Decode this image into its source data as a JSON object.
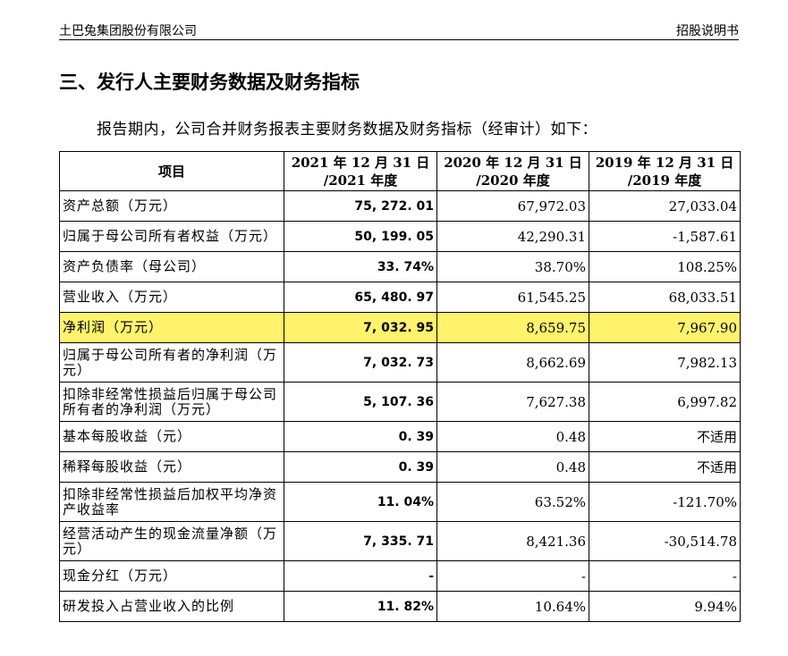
{
  "header": {
    "company": "土巴兔集团股份有限公司",
    "doc_type": "招股说明书"
  },
  "section_title": "三、发行人主要财务数据及财务指标",
  "intro": "报告期内，公司合并财务报表主要财务数据及财务指标（经审计）如下：",
  "table": {
    "headers": [
      {
        "line1": "项目",
        "line2": ""
      },
      {
        "line1": "2021 年 12 月 31 日",
        "line2": "/2021 年度"
      },
      {
        "line1": "2020 年 12 月 31 日",
        "line2": "/2020 年度"
      },
      {
        "line1": "2019 年 12 月 31 日",
        "line2": "/2019 年度"
      }
    ],
    "rows": [
      {
        "item": "资产总额（万元）",
        "v2021": "75, 272. 01",
        "v2020": "67,972.03",
        "v2019": "27,033.04"
      },
      {
        "item": "归属于母公司所有者权益（万元）",
        "v2021": "50, 199. 05",
        "v2020": "42,290.31",
        "v2019": "-1,587.61"
      },
      {
        "item": "资产负债率（母公司）",
        "v2021": "33. 74%",
        "v2020": "38.70%",
        "v2019": "108.25%"
      },
      {
        "item": "营业收入（万元）",
        "v2021": "65, 480. 97",
        "v2020": "61,545.25",
        "v2019": "68,033.51"
      },
      {
        "item": "净利润（万元）",
        "v2021": "7, 032. 95",
        "v2020": "8,659.75",
        "v2019": "7,967.90"
      },
      {
        "item": "归属于母公司所有者的净利润（万元）",
        "v2021": "7, 032. 73",
        "v2020": "8,662.69",
        "v2019": "7,982.13"
      },
      {
        "item": "扣除非经常性损益后归属于母公司所有者的净利润（万元）",
        "v2021": "5, 107. 36",
        "v2020": "7,627.38",
        "v2019": "6,997.82"
      },
      {
        "item": "基本每股收益（元）",
        "v2021": "0. 39",
        "v2020": "0.48",
        "v2019": "不适用"
      },
      {
        "item": "稀释每股收益（元）",
        "v2021": "0. 39",
        "v2020": "0.48",
        "v2019": "不适用"
      },
      {
        "item": "扣除非经常性损益后加权平均净资产收益率",
        "v2021": "11. 04%",
        "v2020": "63.52%",
        "v2019": "-121.70%"
      },
      {
        "item": "经营活动产生的现金流量净额（万元）",
        "v2021": "7, 335. 71",
        "v2020": "8,421.36",
        "v2019": "-30,514.78"
      },
      {
        "item": "现金分红（万元）",
        "v2021": "-",
        "v2020": "-",
        "v2019": "-"
      },
      {
        "item": "研发投入占营业收入的比例",
        "v2021": "11. 82%",
        "v2020": "10.64%",
        "v2019": "9.94%"
      }
    ]
  },
  "highlight_color": "#fef36b"
}
